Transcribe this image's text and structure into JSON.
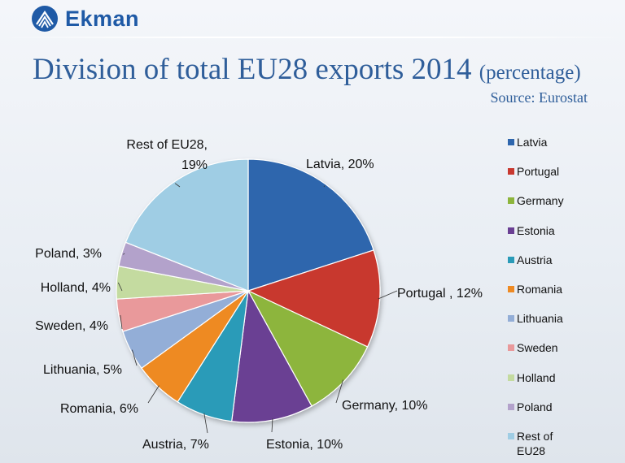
{
  "header": {
    "logo_text": "Ekman",
    "title_main": "Division of total EU28 exports 2014",
    "title_sub": "(percentage)",
    "source": "Source: Eurostat"
  },
  "chart_data": {
    "type": "pie",
    "title": "Division of total EU28 exports 2014 (percentage)",
    "unit": "%",
    "slices": [
      {
        "name": "Latvia",
        "value": 20,
        "color": "#2e66ad",
        "label": "Latvia, 20%"
      },
      {
        "name": "Portugal",
        "value": 12,
        "color": "#c8382f",
        "label": "Portugal , 12%"
      },
      {
        "name": "Germany",
        "value": 10,
        "color": "#8db53c",
        "label": "Germany, 10%"
      },
      {
        "name": "Estonia",
        "value": 10,
        "color": "#6a3f93",
        "label": "Estonia, 10%"
      },
      {
        "name": "Austria",
        "value": 7,
        "color": "#2a9bb8",
        "label": "Austria, 7%"
      },
      {
        "name": "Romania",
        "value": 6,
        "color": "#ee8a23",
        "label": "Romania, 6%"
      },
      {
        "name": "Lithuania",
        "value": 5,
        "color": "#93aed7",
        "label": "Lithuania, 5%"
      },
      {
        "name": "Sweden",
        "value": 4,
        "color": "#e9999b",
        "label": "Sweden, 4%"
      },
      {
        "name": "Holland",
        "value": 4,
        "color": "#c4dba0",
        "label": "Holland, 4%"
      },
      {
        "name": "Poland",
        "value": 3,
        "color": "#b3a2cb",
        "label": "Poland, 3%"
      },
      {
        "name": "Rest of EU28",
        "value": 19,
        "color": "#9fcde4",
        "label": "Rest of EU28, 19%"
      }
    ],
    "legend_placement": "right",
    "legend_labels": [
      "Latvia",
      "Portugal",
      "Germany",
      "Estonia",
      "Austria",
      "Romania",
      "Lithuania",
      "Sweden",
      "Holland",
      "Poland",
      "Rest of EU28"
    ]
  }
}
